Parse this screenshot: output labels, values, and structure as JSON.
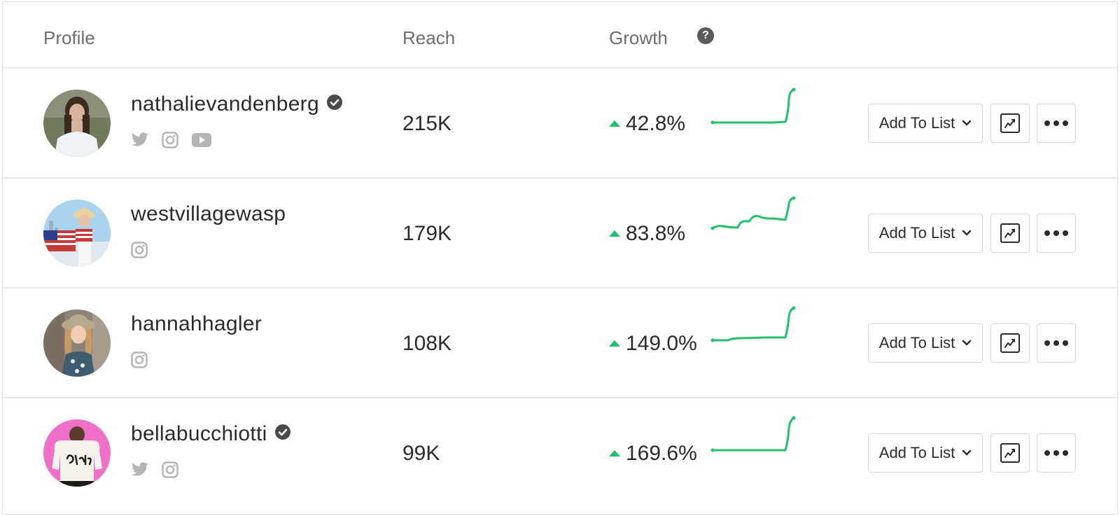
{
  "header": {
    "profile_label": "Profile",
    "reach_label": "Reach",
    "growth_label": "Growth",
    "help_icon": "question-circle-icon",
    "help_glyph": "?"
  },
  "colors": {
    "accent_green": "#1fc16b",
    "border": "#e3e3e3",
    "icon_gray": "#b5b5b5"
  },
  "rows": [
    {
      "username": "nathalievandenberg",
      "verified": true,
      "socials": [
        "twitter-icon",
        "instagram-icon",
        "youtube-icon"
      ],
      "reach": "215K",
      "growth": "42.8%",
      "add_label": "Add To List"
    },
    {
      "username": "westvillagewasp",
      "verified": false,
      "socials": [
        "instagram-icon"
      ],
      "reach": "179K",
      "growth": "83.8%",
      "add_label": "Add To List"
    },
    {
      "username": "hannahhagler",
      "verified": false,
      "socials": [
        "instagram-icon"
      ],
      "reach": "108K",
      "growth": "149.0%",
      "add_label": "Add To List"
    },
    {
      "username": "bellabucchiotti",
      "verified": true,
      "socials": [
        "twitter-icon",
        "instagram-icon"
      ],
      "reach": "99K",
      "growth": "169.6%",
      "add_label": "Add To List"
    }
  ]
}
